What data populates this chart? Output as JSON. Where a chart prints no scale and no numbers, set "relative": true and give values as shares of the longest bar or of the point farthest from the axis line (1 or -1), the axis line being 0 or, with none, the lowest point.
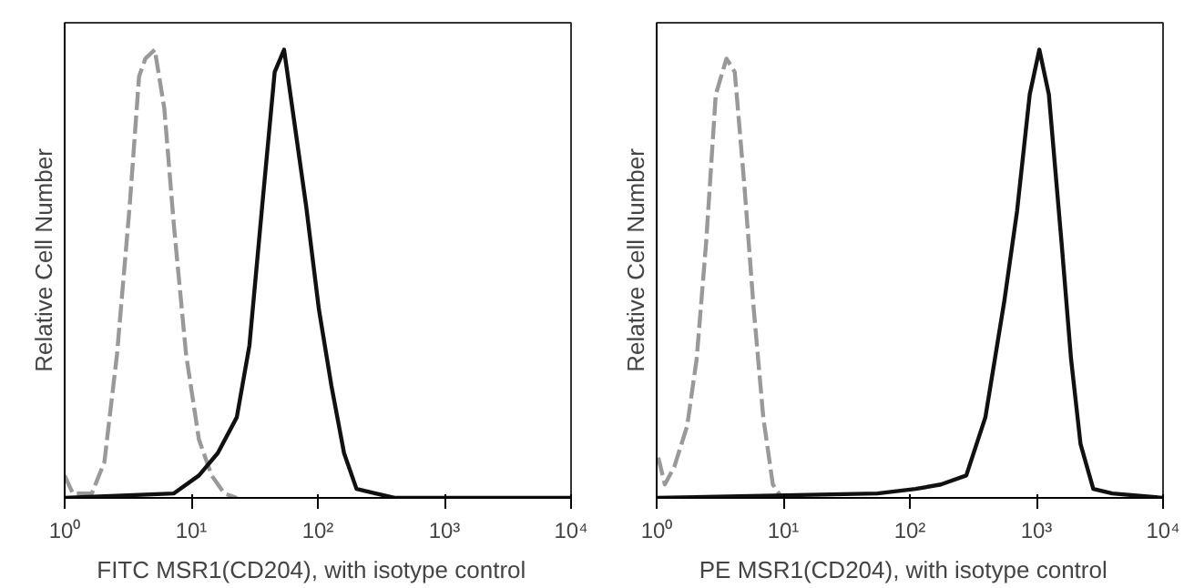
{
  "chart_data": [
    {
      "type": "line",
      "xlabel": "FITC  MSR1(CD204),  with isotype control",
      "ylabel": "Relative Cell Number",
      "relative": true,
      "log": "x",
      "grid": false,
      "marker": "none",
      "xlim": [
        1,
        10000
      ],
      "xticks": [
        {
          "value": 1,
          "label": "10⁰"
        },
        {
          "value": 10,
          "label": "10¹"
        },
        {
          "value": 100,
          "label": "10²"
        },
        {
          "value": 1000,
          "label": "10³"
        },
        {
          "value": 10000,
          "label": "10⁴"
        }
      ],
      "series": [
        {
          "color": "#999999",
          "line_style": "dashed",
          "x": [
            1,
            1.16,
            1.64,
            2.06,
            2.59,
            3.26,
            3.87,
            4.34,
            5.15,
            6.12,
            7.28,
            9.1,
            11.5,
            14.5,
            18.2,
            22.9
          ],
          "values": [
            0.05,
            0.01,
            0.01,
            0.08,
            0.32,
            0.65,
            0.94,
            0.98,
            1.0,
            0.87,
            0.61,
            0.32,
            0.13,
            0.05,
            0.01,
            0
          ]
        },
        {
          "color": "#111111",
          "line_style": "solid",
          "x": [
            1,
            7.3,
            11.5,
            16.2,
            22.9,
            28.8,
            36.3,
            45.6,
            54.1,
            64.3,
            80.9,
            102,
            128,
            161,
            202,
            286,
            403,
            10000
          ],
          "values": [
            0,
            0.01,
            0.05,
            0.1,
            0.18,
            0.34,
            0.65,
            0.95,
            1.0,
            0.85,
            0.65,
            0.42,
            0.25,
            0.1,
            0.02,
            0.01,
            0,
            0
          ]
        }
      ]
    },
    {
      "type": "line",
      "xlabel": "PE  MSR1(CD204),  with isotype control",
      "ylabel": "Relative Cell Number",
      "relative": true,
      "log": "x",
      "grid": false,
      "marker": "none",
      "xlim": [
        1,
        10000
      ],
      "xticks": [
        {
          "value": 1,
          "label": "10⁰"
        },
        {
          "value": 10,
          "label": "10¹"
        },
        {
          "value": 100,
          "label": "10²"
        },
        {
          "value": 1000,
          "label": "10³"
        },
        {
          "value": 10000,
          "label": "10⁴"
        }
      ],
      "series": [
        {
          "color": "#999999",
          "line_style": "dashed",
          "x": [
            1.03,
            1.16,
            1.38,
            1.74,
            2.07,
            2.46,
            2.93,
            3.56,
            4.14,
            4.92,
            5.85,
            6.95,
            8.27,
            9.8
          ],
          "values": [
            0.09,
            0.03,
            0.07,
            0.16,
            0.31,
            0.57,
            0.9,
            0.98,
            0.95,
            0.7,
            0.42,
            0.18,
            0.03,
            0
          ]
        },
        {
          "color": "#111111",
          "line_style": "solid",
          "x": [
            1,
            55.5,
            111,
            176,
            279,
            395,
            558,
            703,
            885,
            1054,
            1253,
            1578,
            1876,
            2230,
            2811,
            3972,
            10000
          ],
          "values": [
            0,
            0.01,
            0.02,
            0.03,
            0.05,
            0.18,
            0.44,
            0.64,
            0.9,
            1.0,
            0.9,
            0.57,
            0.31,
            0.12,
            0.02,
            0.01,
            0
          ]
        }
      ]
    }
  ]
}
